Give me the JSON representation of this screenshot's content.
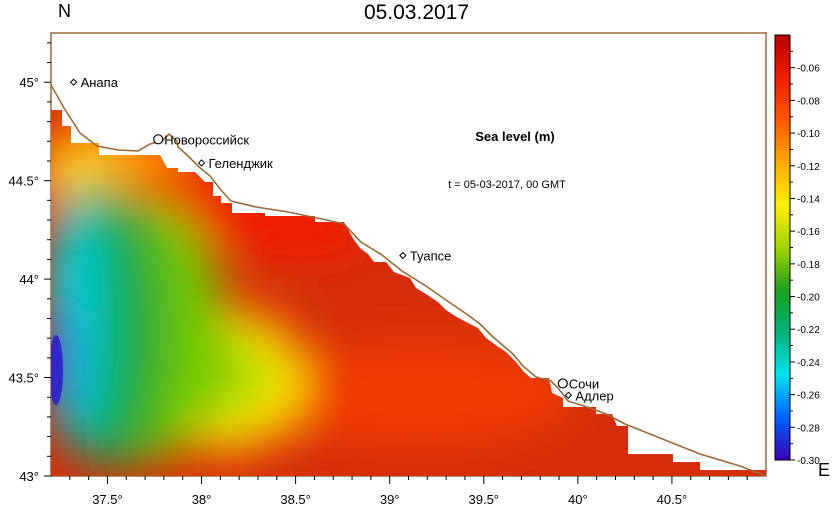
{
  "header": {
    "title": "05.03.2017",
    "north_label": "N",
    "east_label": "E"
  },
  "map": {
    "lon_range": [
      37.2,
      41.0
    ],
    "lat_range": [
      43.0,
      45.25
    ],
    "lat_ticks": [
      {
        "value": 43.0,
        "label": "43°"
      },
      {
        "value": 43.5,
        "label": "43.5°"
      },
      {
        "value": 44.0,
        "label": "44°"
      },
      {
        "value": 44.5,
        "label": "44.5°"
      },
      {
        "value": 45.0,
        "label": "45°"
      }
    ],
    "lon_ticks": [
      {
        "value": 37.5,
        "label": "37.5°"
      },
      {
        "value": 38.0,
        "label": "38°"
      },
      {
        "value": 38.5,
        "label": "38.5°"
      },
      {
        "value": 39.0,
        "label": "39°"
      },
      {
        "value": 39.5,
        "label": "39.5°"
      },
      {
        "value": 40.0,
        "label": "40°"
      },
      {
        "value": 40.5,
        "label": "40.5°"
      }
    ],
    "coast_color": "#9b6a3a",
    "cities": [
      {
        "name": "Анапа",
        "lon": 37.32,
        "lat": 45.0,
        "marker": "diamond"
      },
      {
        "name": "Новороссийск",
        "lon": 37.77,
        "lat": 44.71,
        "marker": "circle"
      },
      {
        "name": "Геленджик",
        "lon": 38.0,
        "lat": 44.59,
        "marker": "diamond"
      },
      {
        "name": "Туапсе",
        "lon": 39.07,
        "lat": 44.12,
        "marker": "diamond"
      },
      {
        "name": "Сочи",
        "lon": 39.92,
        "lat": 43.47,
        "marker": "circle"
      },
      {
        "name": "Адлер",
        "lon": 39.95,
        "lat": 43.41,
        "marker": "diamond"
      }
    ],
    "annotation_title": "Sea level (m)",
    "annotation_time": "t = 05-03-2017,  00 GMT"
  },
  "colorbar": {
    "min": -0.3,
    "max": -0.04,
    "ticks": [
      "-0.06",
      "-0.08",
      "-0.10",
      "-0.12",
      "-0.14",
      "-0.16",
      "-0.18",
      "-0.20",
      "-0.22",
      "-0.24",
      "-0.26",
      "-0.28",
      "-0.30"
    ],
    "colors": [
      "#3a00b4",
      "#0060ff",
      "#00e4f0",
      "#00b27a",
      "#1fa020",
      "#a2d400",
      "#fff000",
      "#ffaa00",
      "#ff5800",
      "#ee1c00",
      "#b80000"
    ]
  }
}
